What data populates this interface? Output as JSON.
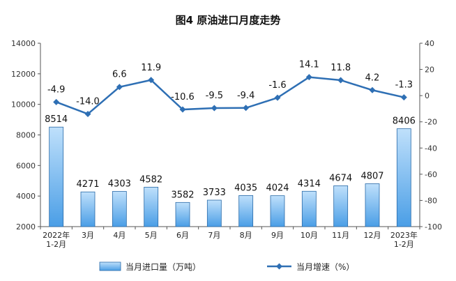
{
  "chart_data": {
    "type": "bar+line",
    "title": "图4  原油进口月度走势",
    "categories": [
      [
        "2022年",
        "1-2月"
      ],
      [
        "3月"
      ],
      [
        "4月"
      ],
      [
        "5月"
      ],
      [
        "6月"
      ],
      [
        "7月"
      ],
      [
        "8月"
      ],
      [
        "9月"
      ],
      [
        "10月"
      ],
      [
        "11月"
      ],
      [
        "12月"
      ],
      [
        "2023年",
        "1-2月"
      ]
    ],
    "series": [
      {
        "name": "当月进口量（万吨）",
        "type": "bar",
        "axis": "left",
        "values": [
          8514,
          4271,
          4303,
          4582,
          3582,
          3733,
          4035,
          4024,
          4314,
          4674,
          4807,
          8406
        ],
        "labels": [
          "8514",
          "4271",
          "4303",
          "4582",
          "3582",
          "3733",
          "4035",
          "4024",
          "4314",
          "4674",
          "4807",
          "8406"
        ]
      },
      {
        "name": "当月增速（%）",
        "type": "line",
        "axis": "right",
        "values": [
          -4.9,
          -14.0,
          6.6,
          11.9,
          -10.6,
          -9.5,
          -9.4,
          -1.6,
          14.1,
          11.8,
          4.2,
          -1.3
        ],
        "labels": [
          "-4.9",
          "-14.0",
          "6.6",
          "11.9",
          "-10.6",
          "-9.5",
          "-9.4",
          "-1.6",
          "14.1",
          "11.8",
          "4.2",
          "-1.3"
        ]
      }
    ],
    "y_left": {
      "min": 2000,
      "max": 14000,
      "step": 2000,
      "ticks": [
        "2000",
        "4000",
        "6000",
        "8000",
        "10000",
        "12000",
        "14000"
      ]
    },
    "y_right": {
      "min": -100,
      "max": 40,
      "step": 20,
      "ticks": [
        "-100",
        "-80",
        "-60",
        "-40",
        "-20",
        "0",
        "20",
        "40"
      ]
    },
    "legend_position": "bottom",
    "grid": false,
    "colors": {
      "bar_fill_top": "#bfe0fb",
      "bar_fill_bottom": "#4a9ee6",
      "bar_stroke": "#2a6aa8",
      "line": "#2e6fb4",
      "marker": "#2e6fb4",
      "axis": "#555555"
    }
  }
}
